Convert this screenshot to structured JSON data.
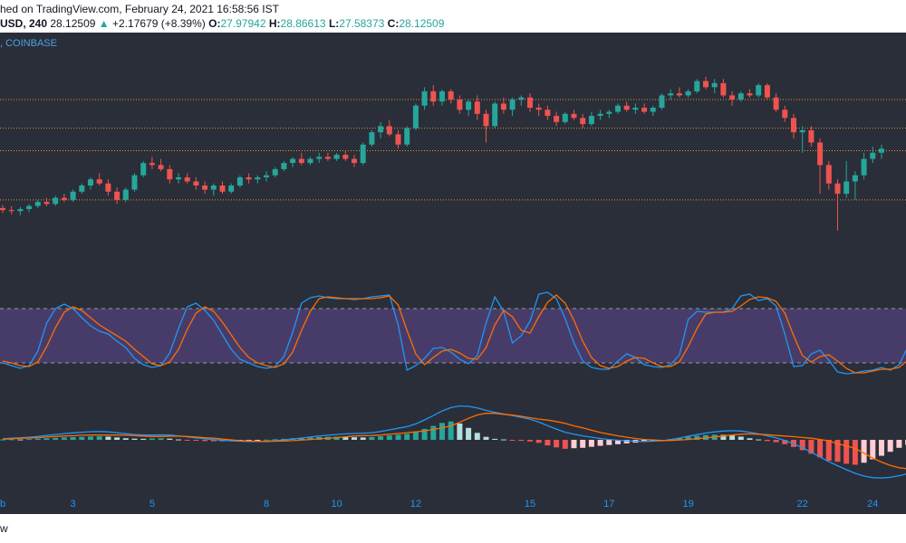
{
  "header": {
    "published": "hed on TradingView.com, February 24, 2021 16:58:56 IST",
    "ohlc": {
      "symbol": "USD, 240",
      "last": "28.12509",
      "change": "+2.17679 (+8.39%)",
      "o_label": "O:",
      "o": "27.97942",
      "h_label": "H:",
      "h": "28.86613",
      "l_label": "L:",
      "l": "27.58373",
      "c_label": "C:",
      "c": "28.12509"
    }
  },
  "exchange_label": ", COINBASE",
  "footer_text": "w",
  "colors": {
    "background": "#2a2e39",
    "up": "#26a69a",
    "down": "#ef5350",
    "stoch_k": "#2196f3",
    "stoch_d": "#ff6d00",
    "stoch_band": "#7e57c2",
    "level_line": "#f9a825",
    "axis_text": "#2196f3"
  },
  "chart_data": [
    {
      "type": "candlestick",
      "x_ticks": [
        "b",
        "3",
        "5",
        "8",
        "10",
        "12",
        "15",
        "17",
        "19",
        "22",
        "24"
      ],
      "ylim": [
        22.5,
        32
      ],
      "levels": [
        30.5,
        29.1,
        28.0,
        25.6
      ],
      "candles": [
        {
          "o": 25.2,
          "h": 25.35,
          "l": 24.95,
          "c": 25.1
        },
        {
          "o": 25.1,
          "h": 25.3,
          "l": 24.9,
          "c": 25.05
        },
        {
          "o": 25.05,
          "h": 25.25,
          "l": 24.85,
          "c": 25.15
        },
        {
          "o": 25.15,
          "h": 25.4,
          "l": 25.0,
          "c": 25.3
        },
        {
          "o": 25.3,
          "h": 25.6,
          "l": 25.2,
          "c": 25.5
        },
        {
          "o": 25.5,
          "h": 25.7,
          "l": 25.3,
          "c": 25.4
        },
        {
          "o": 25.4,
          "h": 25.8,
          "l": 25.3,
          "c": 25.7
        },
        {
          "o": 25.7,
          "h": 25.9,
          "l": 25.5,
          "c": 25.6
        },
        {
          "o": 25.6,
          "h": 26.1,
          "l": 25.5,
          "c": 26.0
        },
        {
          "o": 26.0,
          "h": 26.4,
          "l": 25.9,
          "c": 26.3
        },
        {
          "o": 26.3,
          "h": 26.7,
          "l": 26.1,
          "c": 26.6
        },
        {
          "o": 26.6,
          "h": 26.9,
          "l": 26.3,
          "c": 26.4
        },
        {
          "o": 26.4,
          "h": 26.6,
          "l": 25.8,
          "c": 26.0
        },
        {
          "o": 26.0,
          "h": 26.2,
          "l": 25.4,
          "c": 25.6
        },
        {
          "o": 25.6,
          "h": 26.2,
          "l": 25.5,
          "c": 26.1
        },
        {
          "o": 26.1,
          "h": 26.9,
          "l": 26.0,
          "c": 26.8
        },
        {
          "o": 26.8,
          "h": 27.5,
          "l": 26.7,
          "c": 27.4
        },
        {
          "o": 27.4,
          "h": 27.7,
          "l": 27.1,
          "c": 27.3
        },
        {
          "o": 27.3,
          "h": 27.6,
          "l": 27.0,
          "c": 27.1
        },
        {
          "o": 27.1,
          "h": 27.3,
          "l": 26.4,
          "c": 26.6
        },
        {
          "o": 26.6,
          "h": 26.9,
          "l": 26.4,
          "c": 26.7
        },
        {
          "o": 26.7,
          "h": 26.9,
          "l": 26.4,
          "c": 26.5
        },
        {
          "o": 26.5,
          "h": 26.7,
          "l": 26.1,
          "c": 26.3
        },
        {
          "o": 26.3,
          "h": 26.5,
          "l": 25.9,
          "c": 26.1
        },
        {
          "o": 26.1,
          "h": 26.4,
          "l": 25.8,
          "c": 26.3
        },
        {
          "o": 26.3,
          "h": 26.5,
          "l": 25.9,
          "c": 26.0
        },
        {
          "o": 26.0,
          "h": 26.4,
          "l": 25.9,
          "c": 26.3
        },
        {
          "o": 26.3,
          "h": 26.8,
          "l": 26.2,
          "c": 26.7
        },
        {
          "o": 26.7,
          "h": 26.9,
          "l": 26.4,
          "c": 26.6
        },
        {
          "o": 26.6,
          "h": 26.8,
          "l": 26.4,
          "c": 26.7
        },
        {
          "o": 26.7,
          "h": 27.0,
          "l": 26.5,
          "c": 26.8
        },
        {
          "o": 26.8,
          "h": 27.2,
          "l": 26.7,
          "c": 27.1
        },
        {
          "o": 27.1,
          "h": 27.5,
          "l": 27.0,
          "c": 27.4
        },
        {
          "o": 27.4,
          "h": 27.7,
          "l": 27.2,
          "c": 27.6
        },
        {
          "o": 27.6,
          "h": 27.9,
          "l": 27.3,
          "c": 27.4
        },
        {
          "o": 27.4,
          "h": 27.7,
          "l": 27.3,
          "c": 27.6
        },
        {
          "o": 27.6,
          "h": 27.9,
          "l": 27.4,
          "c": 27.7
        },
        {
          "o": 27.7,
          "h": 27.9,
          "l": 27.5,
          "c": 27.6
        },
        {
          "o": 27.6,
          "h": 27.9,
          "l": 27.5,
          "c": 27.8
        },
        {
          "o": 27.8,
          "h": 28.0,
          "l": 27.5,
          "c": 27.6
        },
        {
          "o": 27.6,
          "h": 27.8,
          "l": 27.2,
          "c": 27.4
        },
        {
          "o": 27.4,
          "h": 28.4,
          "l": 27.3,
          "c": 28.3
        },
        {
          "o": 28.3,
          "h": 29.0,
          "l": 28.2,
          "c": 28.9
        },
        {
          "o": 28.9,
          "h": 29.4,
          "l": 28.6,
          "c": 29.2
        },
        {
          "o": 29.2,
          "h": 29.5,
          "l": 28.7,
          "c": 28.8
        },
        {
          "o": 28.8,
          "h": 29.0,
          "l": 28.1,
          "c": 28.3
        },
        {
          "o": 28.3,
          "h": 29.2,
          "l": 28.2,
          "c": 29.1
        },
        {
          "o": 29.1,
          "h": 30.3,
          "l": 29.0,
          "c": 30.2
        },
        {
          "o": 30.2,
          "h": 31.1,
          "l": 30.0,
          "c": 30.9
        },
        {
          "o": 30.9,
          "h": 31.2,
          "l": 30.2,
          "c": 30.4
        },
        {
          "o": 30.4,
          "h": 31.0,
          "l": 30.2,
          "c": 30.9
        },
        {
          "o": 30.9,
          "h": 31.0,
          "l": 30.3,
          "c": 30.5
        },
        {
          "o": 30.5,
          "h": 30.7,
          "l": 29.8,
          "c": 30.0
        },
        {
          "o": 30.0,
          "h": 30.5,
          "l": 29.7,
          "c": 30.4
        },
        {
          "o": 30.4,
          "h": 30.7,
          "l": 29.5,
          "c": 29.8
        },
        {
          "o": 29.8,
          "h": 30.0,
          "l": 28.4,
          "c": 29.2
        },
        {
          "o": 29.2,
          "h": 30.4,
          "l": 29.1,
          "c": 30.3
        },
        {
          "o": 30.3,
          "h": 30.6,
          "l": 29.8,
          "c": 30.0
        },
        {
          "o": 30.0,
          "h": 30.6,
          "l": 29.7,
          "c": 30.5
        },
        {
          "o": 30.5,
          "h": 30.7,
          "l": 30.2,
          "c": 30.6
        },
        {
          "o": 30.6,
          "h": 30.8,
          "l": 29.9,
          "c": 30.1
        },
        {
          "o": 30.1,
          "h": 30.3,
          "l": 29.7,
          "c": 30.0
        },
        {
          "o": 30.0,
          "h": 30.2,
          "l": 29.5,
          "c": 29.7
        },
        {
          "o": 29.7,
          "h": 29.9,
          "l": 29.2,
          "c": 29.4
        },
        {
          "o": 29.4,
          "h": 29.9,
          "l": 29.3,
          "c": 29.8
        },
        {
          "o": 29.8,
          "h": 30.0,
          "l": 29.5,
          "c": 29.6
        },
        {
          "o": 29.6,
          "h": 29.8,
          "l": 29.1,
          "c": 29.3
        },
        {
          "o": 29.3,
          "h": 29.9,
          "l": 29.2,
          "c": 29.7
        },
        {
          "o": 29.7,
          "h": 30.0,
          "l": 29.5,
          "c": 29.8
        },
        {
          "o": 29.8,
          "h": 30.0,
          "l": 29.6,
          "c": 29.9
        },
        {
          "o": 29.9,
          "h": 30.3,
          "l": 29.8,
          "c": 30.2
        },
        {
          "o": 30.2,
          "h": 30.4,
          "l": 29.9,
          "c": 30.0
        },
        {
          "o": 30.0,
          "h": 30.3,
          "l": 29.8,
          "c": 30.1
        },
        {
          "o": 30.1,
          "h": 30.3,
          "l": 29.8,
          "c": 29.9
        },
        {
          "o": 29.9,
          "h": 30.2,
          "l": 29.7,
          "c": 30.1
        },
        {
          "o": 30.1,
          "h": 30.8,
          "l": 30.0,
          "c": 30.7
        },
        {
          "o": 30.7,
          "h": 31.0,
          "l": 30.5,
          "c": 30.8
        },
        {
          "o": 30.8,
          "h": 31.1,
          "l": 30.6,
          "c": 30.7
        },
        {
          "o": 30.7,
          "h": 31.0,
          "l": 30.6,
          "c": 30.9
        },
        {
          "o": 30.9,
          "h": 31.5,
          "l": 30.8,
          "c": 31.4
        },
        {
          "o": 31.4,
          "h": 31.6,
          "l": 31.0,
          "c": 31.1
        },
        {
          "o": 31.1,
          "h": 31.5,
          "l": 30.8,
          "c": 31.3
        },
        {
          "o": 31.3,
          "h": 31.5,
          "l": 30.6,
          "c": 30.7
        },
        {
          "o": 30.7,
          "h": 30.9,
          "l": 30.2,
          "c": 30.5
        },
        {
          "o": 30.5,
          "h": 30.9,
          "l": 30.4,
          "c": 30.8
        },
        {
          "o": 30.8,
          "h": 31.0,
          "l": 30.6,
          "c": 30.7
        },
        {
          "o": 30.7,
          "h": 31.3,
          "l": 30.6,
          "c": 31.2
        },
        {
          "o": 31.2,
          "h": 31.3,
          "l": 30.5,
          "c": 30.6
        },
        {
          "o": 30.6,
          "h": 30.8,
          "l": 29.9,
          "c": 30.0
        },
        {
          "o": 30.0,
          "h": 30.2,
          "l": 29.4,
          "c": 29.6
        },
        {
          "o": 29.6,
          "h": 29.8,
          "l": 28.6,
          "c": 28.9
        },
        {
          "o": 28.9,
          "h": 29.2,
          "l": 27.9,
          "c": 29.0
        },
        {
          "o": 29.0,
          "h": 29.2,
          "l": 28.2,
          "c": 28.4
        },
        {
          "o": 28.4,
          "h": 28.6,
          "l": 25.9,
          "c": 27.3
        },
        {
          "o": 27.3,
          "h": 27.5,
          "l": 26.1,
          "c": 26.4
        },
        {
          "o": 26.4,
          "h": 26.6,
          "l": 24.1,
          "c": 25.9
        },
        {
          "o": 25.9,
          "h": 27.5,
          "l": 25.7,
          "c": 26.5
        },
        {
          "o": 26.5,
          "h": 27.0,
          "l": 25.6,
          "c": 26.8
        },
        {
          "o": 26.8,
          "h": 27.9,
          "l": 26.6,
          "c": 27.6
        },
        {
          "o": 27.6,
          "h": 28.2,
          "l": 27.4,
          "c": 27.9
        },
        {
          "o": 27.9,
          "h": 28.3,
          "l": 27.6,
          "c": 28.1
        }
      ]
    },
    {
      "type": "line",
      "name": "stochastic",
      "ylim": [
        0,
        100
      ],
      "band": [
        20,
        80
      ],
      "k": [
        20,
        17,
        14,
        17,
        33,
        64,
        80,
        85,
        80,
        70,
        61,
        55,
        52,
        44,
        37,
        25,
        18,
        15,
        17,
        31,
        58,
        82,
        86,
        78,
        67,
        51,
        35,
        24,
        20,
        16,
        14,
        16,
        27,
        54,
        86,
        92,
        94,
        92,
        91,
        91,
        90,
        91,
        93,
        94,
        95,
        62,
        12,
        17,
        25,
        36,
        37,
        32,
        24,
        19,
        28,
        64,
        93,
        77,
        42,
        50,
        66,
        96,
        98,
        91,
        69,
        42,
        22,
        15,
        13,
        13,
        22,
        30,
        26,
        18,
        16,
        15,
        18,
        29,
        68,
        77,
        76,
        76,
        76,
        80,
        94,
        96,
        89,
        91,
        83,
        52,
        16,
        17,
        30,
        34,
        23,
        10,
        8,
        9,
        11,
        12,
        15,
        12,
        18,
        38,
        75,
        84
      ],
      "d": [
        22,
        20,
        17,
        16,
        21,
        38,
        59,
        76,
        82,
        78,
        70,
        62,
        56,
        50,
        44,
        35,
        27,
        19,
        17,
        21,
        35,
        57,
        75,
        82,
        77,
        65,
        51,
        37,
        26,
        20,
        17,
        15,
        19,
        32,
        56,
        77,
        91,
        93,
        92,
        91,
        91,
        91,
        91,
        92,
        94,
        84,
        56,
        30,
        18,
        26,
        33,
        35,
        31,
        25,
        24,
        37,
        62,
        78,
        71,
        56,
        53,
        71,
        87,
        95,
        86,
        67,
        44,
        26,
        17,
        14,
        16,
        22,
        26,
        25,
        20,
        16,
        16,
        21,
        38,
        58,
        74,
        76,
        76,
        77,
        83,
        90,
        93,
        92,
        88,
        75,
        50,
        28,
        21,
        27,
        29,
        22,
        14,
        9,
        9,
        11,
        13,
        13,
        15,
        23,
        44,
        66
      ]
    },
    {
      "type": "line",
      "name": "macd",
      "hist": [
        0.02,
        0.03,
        0.02,
        0.04,
        0.06,
        0.08,
        0.1,
        0.12,
        0.14,
        0.15,
        0.17,
        0.18,
        0.16,
        0.12,
        0.08,
        0.06,
        0.05,
        0.07,
        0.08,
        0.06,
        0.02,
        -0.02,
        -0.04,
        -0.06,
        -0.07,
        -0.06,
        -0.05,
        -0.03,
        -0.02,
        -0.01,
        0.01,
        0.03,
        0.05,
        0.08,
        0.1,
        0.12,
        0.14,
        0.15,
        0.16,
        0.15,
        0.13,
        0.12,
        0.14,
        0.18,
        0.22,
        0.26,
        0.3,
        0.4,
        0.55,
        0.7,
        0.85,
        0.92,
        0.82,
        0.6,
        0.35,
        0.15,
        0.05,
        0.02,
        -0.02,
        -0.05,
        -0.08,
        -0.15,
        -0.28,
        -0.38,
        -0.45,
        -0.42,
        -0.4,
        -0.35,
        -0.3,
        -0.26,
        -0.22,
        -0.18,
        -0.14,
        -0.1,
        -0.06,
        -0.02,
        0.04,
        0.1,
        0.16,
        0.2,
        0.24,
        0.26,
        0.25,
        0.22,
        0.16,
        0.08,
        0.02,
        -0.06,
        -0.12,
        -0.22,
        -0.36,
        -0.52,
        -0.7,
        -0.88,
        -1.05,
        -1.1,
        -1.2,
        -1.25,
        -1.15,
        -0.98,
        -0.8,
        -0.6,
        -0.4,
        -0.25,
        -0.1,
        -0.05
      ],
      "macd": [
        0.05,
        0.08,
        0.1,
        0.13,
        0.17,
        0.22,
        0.27,
        0.31,
        0.35,
        0.38,
        0.41,
        0.42,
        0.4,
        0.36,
        0.31,
        0.27,
        0.24,
        0.24,
        0.25,
        0.24,
        0.2,
        0.15,
        0.1,
        0.05,
        0.01,
        -0.02,
        -0.05,
        -0.07,
        -0.08,
        -0.08,
        -0.07,
        -0.04,
        -0.01,
        0.04,
        0.09,
        0.14,
        0.19,
        0.23,
        0.27,
        0.3,
        0.32,
        0.33,
        0.36,
        0.42,
        0.5,
        0.58,
        0.66,
        0.8,
        1.0,
        1.22,
        1.45,
        1.62,
        1.7,
        1.68,
        1.6,
        1.48,
        1.38,
        1.3,
        1.22,
        1.13,
        1.03,
        0.89,
        0.71,
        0.54,
        0.38,
        0.28,
        0.2,
        0.13,
        0.07,
        0.02,
        -0.02,
        -0.05,
        -0.07,
        -0.08,
        -0.07,
        -0.05,
        0.01,
        0.09,
        0.18,
        0.26,
        0.34,
        0.4,
        0.44,
        0.46,
        0.44,
        0.38,
        0.3,
        0.2,
        0.1,
        -0.03,
        -0.2,
        -0.4,
        -0.62,
        -0.86,
        -1.1,
        -1.3,
        -1.5,
        -1.68,
        -1.82,
        -1.9,
        -1.92,
        -1.88,
        -1.8,
        -1.7,
        -1.6,
        -1.52
      ],
      "signal": [
        0.03,
        0.05,
        0.08,
        0.09,
        0.11,
        0.14,
        0.17,
        0.19,
        0.21,
        0.23,
        0.24,
        0.24,
        0.24,
        0.24,
        0.23,
        0.21,
        0.19,
        0.17,
        0.17,
        0.18,
        0.18,
        0.17,
        0.14,
        0.11,
        0.08,
        0.04,
        0.0,
        -0.04,
        -0.06,
        -0.07,
        -0.08,
        -0.07,
        -0.06,
        -0.04,
        -0.01,
        0.02,
        0.05,
        0.08,
        0.11,
        0.15,
        0.19,
        0.21,
        0.22,
        0.24,
        0.28,
        0.32,
        0.36,
        0.4,
        0.45,
        0.52,
        0.6,
        0.7,
        0.88,
        1.08,
        1.25,
        1.33,
        1.33,
        1.28,
        1.24,
        1.18,
        1.11,
        1.04,
        0.99,
        0.92,
        0.83,
        0.7,
        0.6,
        0.48,
        0.37,
        0.28,
        0.2,
        0.13,
        0.07,
        0.02,
        -0.01,
        -0.03,
        -0.03,
        -0.01,
        0.02,
        0.06,
        0.1,
        0.14,
        0.19,
        0.24,
        0.28,
        0.3,
        0.28,
        0.26,
        0.22,
        0.19,
        0.16,
        0.12,
        0.08,
        0.02,
        -0.05,
        -0.2,
        -0.3,
        -0.43,
        -0.67,
        -0.92,
        -1.12,
        -1.28,
        -1.4,
        -1.45,
        -1.5,
        -1.47
      ]
    }
  ]
}
